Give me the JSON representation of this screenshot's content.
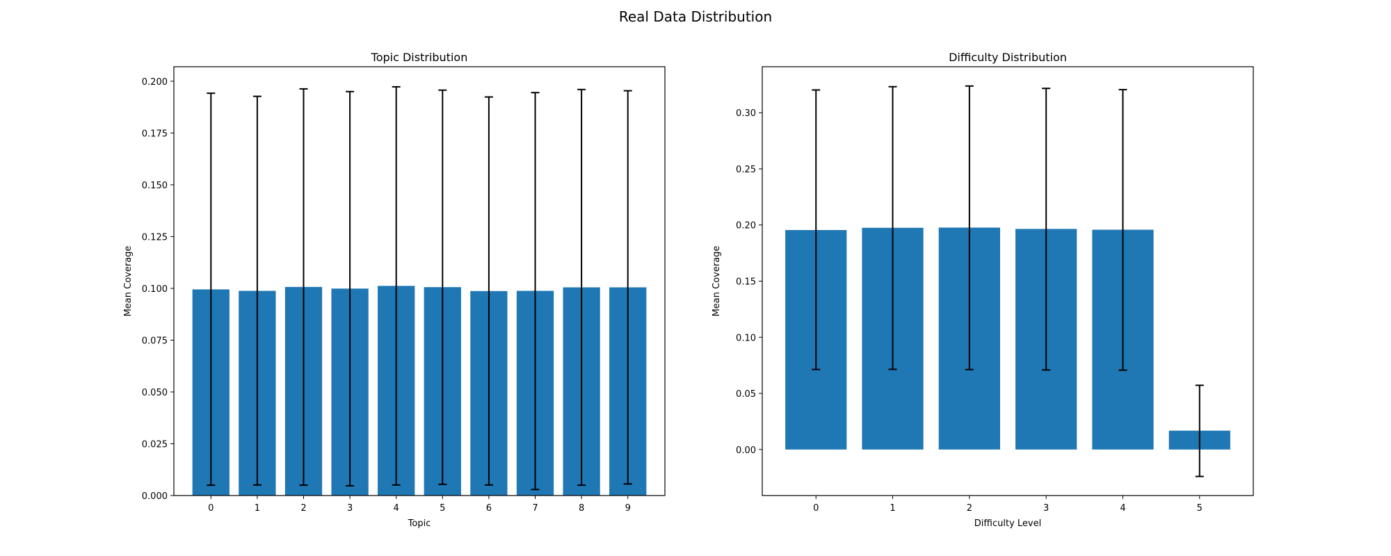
{
  "figure_title": "Real Data Distribution",
  "colors": {
    "bar": "#1f77b4",
    "errorbar": "#000000",
    "axes": "#000000"
  },
  "chart_data": [
    {
      "type": "bar",
      "title": "Topic Distribution",
      "xlabel": "Topic",
      "ylabel": "Mean Coverage",
      "categories": [
        "0",
        "1",
        "2",
        "3",
        "4",
        "5",
        "6",
        "7",
        "8",
        "9"
      ],
      "values": [
        0.0995,
        0.0988,
        0.1007,
        0.0999,
        0.1012,
        0.1006,
        0.0987,
        0.0988,
        0.1005,
        0.1005
      ],
      "error_low": [
        0.005,
        0.0051,
        0.005,
        0.0047,
        0.0051,
        0.0054,
        0.0051,
        0.0029,
        0.005,
        0.0056
      ],
      "error_high": [
        0.1942,
        0.1927,
        0.1963,
        0.195,
        0.1973,
        0.1957,
        0.1924,
        0.1945,
        0.196,
        0.1954
      ],
      "ylim": [
        0.0,
        0.207
      ],
      "yticks": [
        0.0,
        0.025,
        0.05,
        0.075,
        0.1,
        0.125,
        0.15,
        0.175,
        0.2
      ],
      "ytick_labels": [
        "0.000",
        "0.025",
        "0.050",
        "0.075",
        "0.100",
        "0.125",
        "0.150",
        "0.175",
        "0.200"
      ],
      "grid": false
    },
    {
      "type": "bar",
      "title": "Difficulty Distribution",
      "xlabel": "Difficulty Level",
      "ylabel": "Mean Coverage",
      "categories": [
        "0",
        "1",
        "2",
        "3",
        "4",
        "5"
      ],
      "values": [
        0.1955,
        0.1975,
        0.1977,
        0.1965,
        0.1958,
        0.0168
      ],
      "error_low": [
        0.0713,
        0.0714,
        0.0712,
        0.0709,
        0.0707,
        -0.024
      ],
      "error_high": [
        0.3203,
        0.3232,
        0.3238,
        0.3217,
        0.3206,
        0.0572
      ],
      "ylim": [
        -0.041,
        0.341
      ],
      "yticks": [
        0.0,
        0.05,
        0.1,
        0.15,
        0.2,
        0.25,
        0.3
      ],
      "ytick_labels": [
        "0.00",
        "0.05",
        "0.10",
        "0.15",
        "0.20",
        "0.25",
        "0.30"
      ],
      "grid": false
    }
  ]
}
